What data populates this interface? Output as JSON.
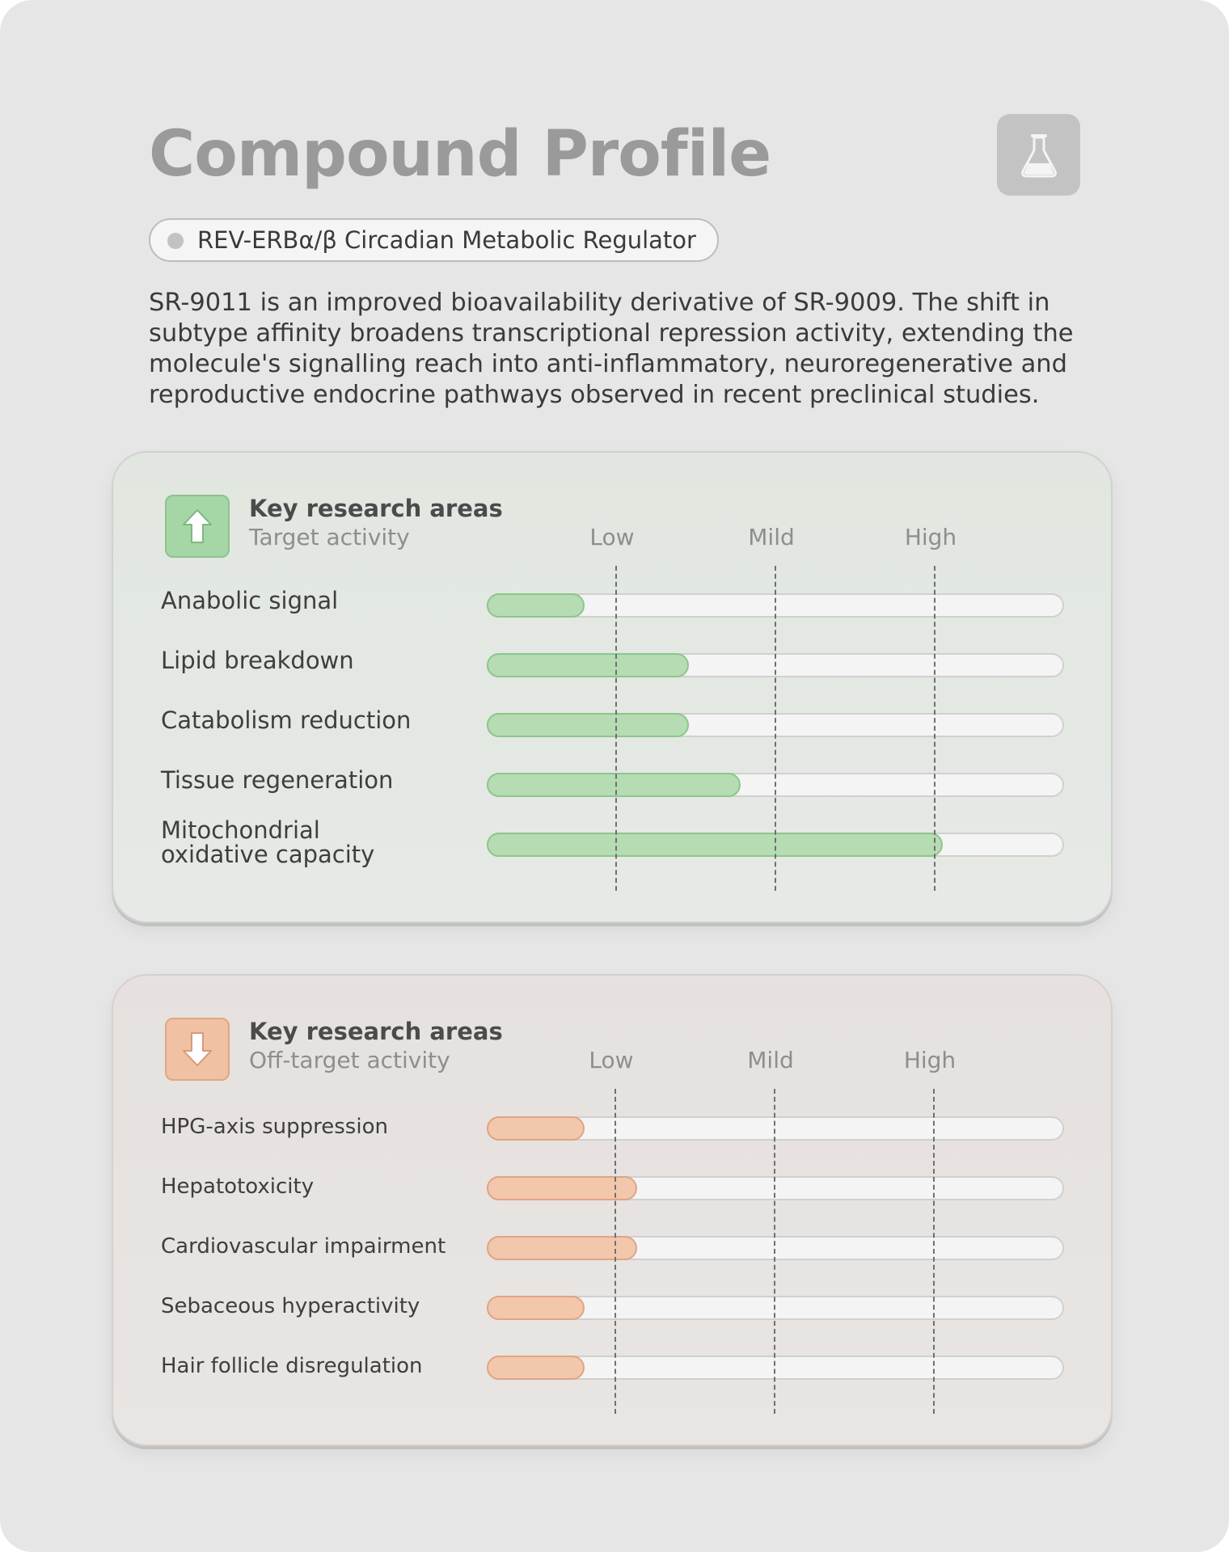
{
  "page": {
    "title": "Compound Profile",
    "tag": "REV-ERBα/β Circadian Metabolic Regulator",
    "description": "SR-9011 is an improved bioavailability derivative of SR-9009. The shift in subtype affinity broadens transcriptional repression activity, extending the molecule's signalling reach into anti-inflammatory, neuroregenerative and reproductive endocrine pathways observed in recent preclinical studies.",
    "icon": "flask-icon"
  },
  "levels": [
    "Low",
    "Mild",
    "High"
  ],
  "target": {
    "heading": "Key research areas",
    "subheading": "Target activity",
    "icon": "arrow-up-icon",
    "color": "#b5dcb3",
    "items": [
      {
        "label": "Anabolic signal",
        "value": 0.17
      },
      {
        "label": "Lipid breakdown",
        "value": 0.35
      },
      {
        "label": "Catabolism reduction",
        "value": 0.35
      },
      {
        "label": "Tissue regeneration",
        "value": 0.44
      },
      {
        "label": "Mitochondrial\noxidative capacity",
        "value": 0.79
      }
    ]
  },
  "off_target": {
    "heading": "Key research areas",
    "subheading": "Off-target activity",
    "icon": "arrow-down-icon",
    "color": "#f2c7ab",
    "items": [
      {
        "label": "HPG-axis suppression",
        "value": 0.17
      },
      {
        "label": "Hepatotoxicity",
        "value": 0.26
      },
      {
        "label": "Cardiovascular impairment",
        "value": 0.26
      },
      {
        "label": "Sebaceous hyperactivity",
        "value": 0.17
      },
      {
        "label": "Hair follicle disregulation",
        "value": 0.17
      }
    ]
  }
}
